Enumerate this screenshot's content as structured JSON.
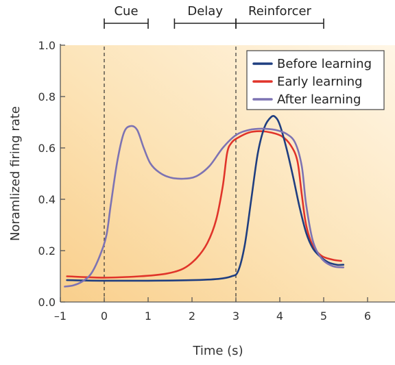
{
  "chart_data": {
    "type": "line",
    "title": "",
    "xlabel": "Time (s)",
    "ylabel": "Noramlized firing rate",
    "xlim": [
      -1,
      6.5
    ],
    "ylim": [
      0,
      1.0
    ],
    "x_ticks": [
      -1,
      0,
      1,
      2,
      3,
      4,
      5,
      6
    ],
    "x_tick_labels": [
      "–1",
      "0",
      "1",
      "2",
      "3",
      "4",
      "5",
      "6"
    ],
    "y_ticks": [
      0,
      0.2,
      0.4,
      0.6,
      0.8,
      1.0
    ],
    "y_tick_labels": [
      "0.0",
      "0.2",
      "0.4",
      "0.6",
      "0.8",
      "1.0"
    ],
    "grid": false,
    "legend_position": "top-right",
    "background": "gradient, pale yellow to orange",
    "event_markers": [
      {
        "x": 0,
        "style": "dashed"
      },
      {
        "x": 3,
        "style": "dashed"
      }
    ],
    "phases": [
      {
        "label": "Cue",
        "start": 0,
        "end": 1
      },
      {
        "label": "Delay",
        "start": 1.6,
        "end": 3
      },
      {
        "label": "Reinforcer",
        "start": 3,
        "end": 5
      }
    ],
    "series": [
      {
        "name": "Before learning",
        "color": "#1f3e80",
        "points": [
          [
            -0.85,
            0.085
          ],
          [
            0,
            0.083
          ],
          [
            1,
            0.083
          ],
          [
            2,
            0.085
          ],
          [
            2.6,
            0.09
          ],
          [
            2.9,
            0.1
          ],
          [
            3.05,
            0.12
          ],
          [
            3.2,
            0.22
          ],
          [
            3.35,
            0.4
          ],
          [
            3.5,
            0.58
          ],
          [
            3.65,
            0.68
          ],
          [
            3.8,
            0.72
          ],
          [
            3.9,
            0.72
          ],
          [
            4.0,
            0.69
          ],
          [
            4.15,
            0.6
          ],
          [
            4.3,
            0.49
          ],
          [
            4.45,
            0.37
          ],
          [
            4.6,
            0.27
          ],
          [
            4.75,
            0.21
          ],
          [
            4.9,
            0.18
          ],
          [
            5.1,
            0.155
          ],
          [
            5.3,
            0.145
          ],
          [
            5.45,
            0.145
          ]
        ]
      },
      {
        "name": "Early learning",
        "color": "#e0342a",
        "points": [
          [
            -0.85,
            0.1
          ],
          [
            0,
            0.095
          ],
          [
            0.8,
            0.1
          ],
          [
            1.4,
            0.11
          ],
          [
            1.8,
            0.13
          ],
          [
            2.1,
            0.17
          ],
          [
            2.35,
            0.23
          ],
          [
            2.55,
            0.32
          ],
          [
            2.7,
            0.45
          ],
          [
            2.8,
            0.58
          ],
          [
            2.9,
            0.62
          ],
          [
            3.05,
            0.64
          ],
          [
            3.3,
            0.66
          ],
          [
            3.55,
            0.665
          ],
          [
            3.8,
            0.66
          ],
          [
            4.05,
            0.645
          ],
          [
            4.25,
            0.61
          ],
          [
            4.4,
            0.55
          ],
          [
            4.5,
            0.42
          ],
          [
            4.6,
            0.3
          ],
          [
            4.75,
            0.22
          ],
          [
            4.95,
            0.18
          ],
          [
            5.2,
            0.165
          ],
          [
            5.4,
            0.16
          ]
        ]
      },
      {
        "name": "After learning",
        "color": "#7d73b3",
        "points": [
          [
            -0.9,
            0.06
          ],
          [
            -0.7,
            0.065
          ],
          [
            -0.5,
            0.08
          ],
          [
            -0.3,
            0.11
          ],
          [
            -0.1,
            0.18
          ],
          [
            0.05,
            0.26
          ],
          [
            0.15,
            0.38
          ],
          [
            0.3,
            0.55
          ],
          [
            0.45,
            0.66
          ],
          [
            0.6,
            0.685
          ],
          [
            0.75,
            0.67
          ],
          [
            0.9,
            0.6
          ],
          [
            1.05,
            0.54
          ],
          [
            1.25,
            0.505
          ],
          [
            1.5,
            0.485
          ],
          [
            1.8,
            0.48
          ],
          [
            2.1,
            0.49
          ],
          [
            2.4,
            0.53
          ],
          [
            2.7,
            0.6
          ],
          [
            3.0,
            0.65
          ],
          [
            3.3,
            0.67
          ],
          [
            3.6,
            0.675
          ],
          [
            3.9,
            0.67
          ],
          [
            4.15,
            0.655
          ],
          [
            4.35,
            0.62
          ],
          [
            4.5,
            0.53
          ],
          [
            4.6,
            0.38
          ],
          [
            4.75,
            0.24
          ],
          [
            4.95,
            0.17
          ],
          [
            5.2,
            0.14
          ],
          [
            5.45,
            0.135
          ]
        ]
      }
    ]
  }
}
